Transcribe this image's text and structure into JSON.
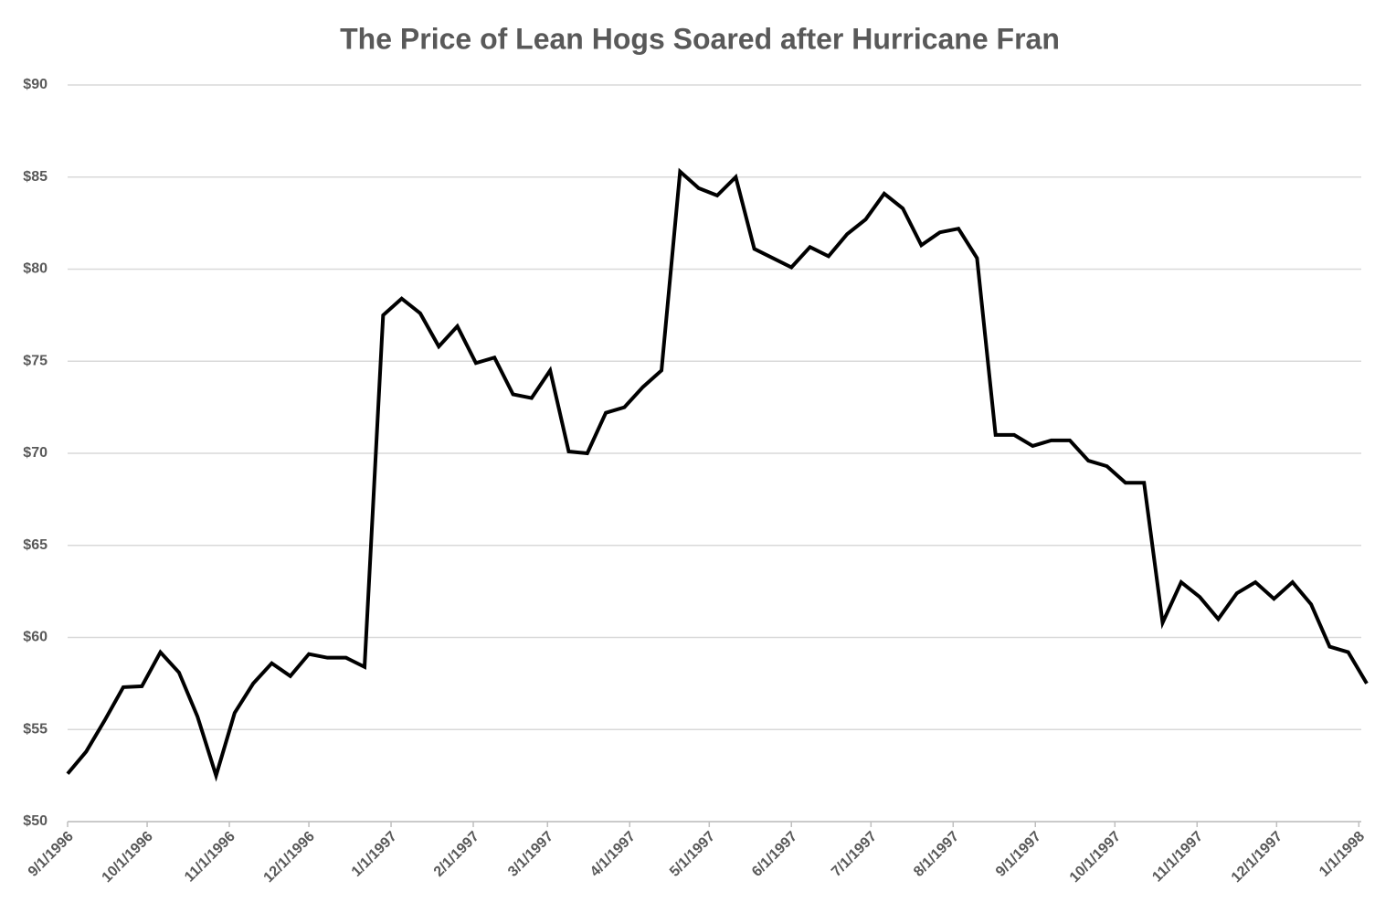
{
  "chart_data": {
    "type": "line",
    "title": "The Price of Lean Hogs Soared after Hurricane Fran",
    "x": [
      "1996-09-01",
      "1996-09-08",
      "1996-09-15",
      "1996-09-22",
      "1996-09-29",
      "1996-10-06",
      "1996-10-13",
      "1996-10-20",
      "1996-10-27",
      "1996-11-03",
      "1996-11-10",
      "1996-11-17",
      "1996-11-24",
      "1996-12-01",
      "1996-12-08",
      "1996-12-15",
      "1996-12-22",
      "1996-12-29",
      "1997-01-05",
      "1997-01-12",
      "1997-01-19",
      "1997-01-26",
      "1997-02-02",
      "1997-02-09",
      "1997-02-16",
      "1997-02-23",
      "1997-03-02",
      "1997-03-09",
      "1997-03-16",
      "1997-03-23",
      "1997-03-30",
      "1997-04-06",
      "1997-04-13",
      "1997-04-20",
      "1997-04-27",
      "1997-05-04",
      "1997-05-11",
      "1997-05-18",
      "1997-05-25",
      "1997-06-01",
      "1997-06-08",
      "1997-06-15",
      "1997-06-22",
      "1997-06-29",
      "1997-07-06",
      "1997-07-13",
      "1997-07-20",
      "1997-07-27",
      "1997-08-03",
      "1997-08-10",
      "1997-08-17",
      "1997-08-24",
      "1997-08-31",
      "1997-09-07",
      "1997-09-14",
      "1997-09-21",
      "1997-09-28",
      "1997-10-05",
      "1997-10-12",
      "1997-10-19",
      "1997-10-26",
      "1997-11-02",
      "1997-11-09",
      "1997-11-16",
      "1997-11-23",
      "1997-11-30",
      "1997-12-07",
      "1997-12-14",
      "1997-12-21",
      "1997-12-28",
      "1998-01-04"
    ],
    "series": [
      {
        "name": "Lean Hogs",
        "color": "#000000",
        "values": [
          52.6,
          53.8,
          55.5,
          57.3,
          57.35,
          59.2,
          58.1,
          55.7,
          52.5,
          55.9,
          57.5,
          58.6,
          57.9,
          59.1,
          58.9,
          58.9,
          58.4,
          77.5,
          78.4,
          77.6,
          75.8,
          76.9,
          74.9,
          75.2,
          73.2,
          73.0,
          74.5,
          70.1,
          70.0,
          72.2,
          72.5,
          73.6,
          74.5,
          85.3,
          84.4,
          84.0,
          85.0,
          81.1,
          80.6,
          80.1,
          81.2,
          80.7,
          81.9,
          82.7,
          84.1,
          83.3,
          81.3,
          82.0,
          82.2,
          80.6,
          71.0,
          71.0,
          70.4,
          70.7,
          70.7,
          69.6,
          69.3,
          68.4,
          68.4,
          60.8,
          63.0,
          62.2,
          61.0,
          62.4,
          63.0,
          62.1,
          63.0,
          61.8,
          59.5,
          59.2,
          57.5
        ]
      }
    ],
    "xlim": [
      "1996-09-01",
      "1998-01-04"
    ],
    "xticks": [
      {
        "value": "1996-09-01",
        "label": "9/1/1996"
      },
      {
        "value": "1996-10-01",
        "label": "10/1/1996"
      },
      {
        "value": "1996-11-01",
        "label": "11/1/1996"
      },
      {
        "value": "1996-12-01",
        "label": "12/1/1996"
      },
      {
        "value": "1997-01-01",
        "label": "1/1/1997"
      },
      {
        "value": "1997-02-01",
        "label": "2/1/1997"
      },
      {
        "value": "1997-03-01",
        "label": "3/1/1997"
      },
      {
        "value": "1997-04-01",
        "label": "4/1/1997"
      },
      {
        "value": "1997-05-01",
        "label": "5/1/1997"
      },
      {
        "value": "1997-06-01",
        "label": "6/1/1997"
      },
      {
        "value": "1997-07-01",
        "label": "7/1/1997"
      },
      {
        "value": "1997-08-01",
        "label": "8/1/1997"
      },
      {
        "value": "1997-09-01",
        "label": "9/1/1997"
      },
      {
        "value": "1997-10-01",
        "label": "10/1/1997"
      },
      {
        "value": "1997-11-01",
        "label": "11/1/1997"
      },
      {
        "value": "1997-12-01",
        "label": "12/1/1997"
      },
      {
        "value": "1998-01-01",
        "label": "1/1/1998"
      }
    ],
    "ylim": [
      50,
      90
    ],
    "yticks": [
      {
        "value": 50,
        "label": "$50"
      },
      {
        "value": 55,
        "label": "$55"
      },
      {
        "value": 60,
        "label": "$60"
      },
      {
        "value": 65,
        "label": "$65"
      },
      {
        "value": 70,
        "label": "$70"
      },
      {
        "value": 75,
        "label": "$75"
      },
      {
        "value": 80,
        "label": "$80"
      },
      {
        "value": 85,
        "label": "$85"
      },
      {
        "value": 90,
        "label": "$90"
      }
    ],
    "grid": true
  }
}
